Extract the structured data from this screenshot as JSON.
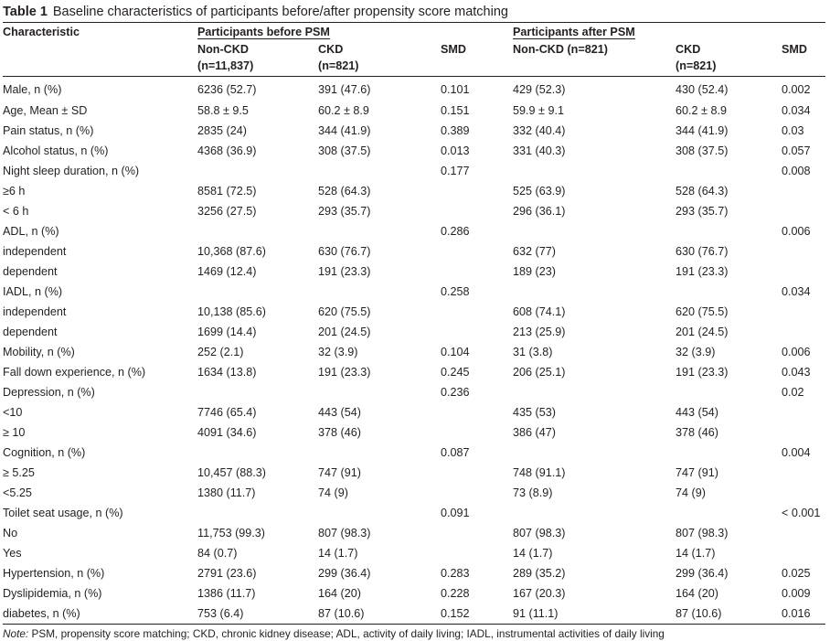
{
  "caption": {
    "label": "Table 1",
    "text": "Baseline characteristics of participants before/after propensity score matching"
  },
  "header": {
    "characteristic": "Characteristic",
    "group_before": "Participants before PSM",
    "group_after": "Participants after PSM",
    "before_noncdk_line1": "Non-CKD",
    "before_noncdk_line2": "(n=11,837)",
    "before_ckd_line1": "CKD",
    "before_ckd_line2": "(n=821)",
    "before_smd": "SMD",
    "after_noncdk_line1": "Non-CKD (n=821)",
    "after_ckd_line1": "CKD",
    "after_ckd_line2": "(n=821)",
    "after_smd": "SMD"
  },
  "rows": [
    [
      "Male, n (%)",
      "6236 (52.7)",
      "391 (47.6)",
      "0.101",
      "429 (52.3)",
      "430 (52.4)",
      "0.002"
    ],
    [
      "Age, Mean ± SD",
      "58.8 ± 9.5",
      "60.2 ± 8.9",
      "0.151",
      "59.9 ± 9.1",
      "60.2 ± 8.9",
      "0.034"
    ],
    [
      "Pain status, n (%)",
      "2835 (24)",
      "344 (41.9)",
      "0.389",
      "332 (40.4)",
      "344 (41.9)",
      "0.03"
    ],
    [
      "Alcohol status, n (%)",
      "4368 (36.9)",
      "308 (37.5)",
      "0.013",
      "331 (40.3)",
      "308 (37.5)",
      "0.057"
    ],
    [
      "Night sleep duration, n (%)",
      "",
      "",
      "0.177",
      "",
      "",
      "0.008"
    ],
    [
      "≥6 h",
      "8581 (72.5)",
      "528 (64.3)",
      "",
      "525 (63.9)",
      "528 (64.3)",
      ""
    ],
    [
      "< 6 h",
      "3256 (27.5)",
      "293 (35.7)",
      "",
      "296 (36.1)",
      "293 (35.7)",
      ""
    ],
    [
      "ADL, n (%)",
      "",
      "",
      "0.286",
      "",
      "",
      "0.006"
    ],
    [
      "independent",
      "10,368 (87.6)",
      "630 (76.7)",
      "",
      "632 (77)",
      "630 (76.7)",
      ""
    ],
    [
      "dependent",
      "1469 (12.4)",
      "191 (23.3)",
      "",
      "189 (23)",
      "191 (23.3)",
      ""
    ],
    [
      "IADL, n (%)",
      "",
      "",
      "0.258",
      "",
      "",
      "0.034"
    ],
    [
      "independent",
      "10,138 (85.6)",
      "620 (75.5)",
      "",
      "608 (74.1)",
      "620 (75.5)",
      ""
    ],
    [
      "dependent",
      "1699 (14.4)",
      "201 (24.5)",
      "",
      "213 (25.9)",
      "201 (24.5)",
      ""
    ],
    [
      "Mobility, n (%)",
      "252 (2.1)",
      "32 (3.9)",
      "0.104",
      "31 (3.8)",
      "32 (3.9)",
      "0.006"
    ],
    [
      "Fall down experience, n (%)",
      "1634 (13.8)",
      "191 (23.3)",
      "0.245",
      "206 (25.1)",
      "191 (23.3)",
      "0.043"
    ],
    [
      "Depression, n (%)",
      "",
      "",
      "0.236",
      "",
      "",
      "0.02"
    ],
    [
      "<10",
      "7746 (65.4)",
      "443 (54)",
      "",
      "435 (53)",
      "443 (54)",
      ""
    ],
    [
      "≥ 10",
      "4091 (34.6)",
      "378 (46)",
      "",
      "386 (47)",
      "378 (46)",
      ""
    ],
    [
      "Cognition, n (%)",
      "",
      "",
      "0.087",
      "",
      "",
      "0.004"
    ],
    [
      "≥ 5.25",
      "10,457 (88.3)",
      "747 (91)",
      "",
      "748 (91.1)",
      "747 (91)",
      ""
    ],
    [
      "<5.25",
      "1380 (11.7)",
      "74 (9)",
      "",
      "73 (8.9)",
      "74 (9)",
      ""
    ],
    [
      "Toilet seat usage, n (%)",
      "",
      "",
      "0.091",
      "",
      "",
      "< 0.001"
    ],
    [
      "No",
      "11,753 (99.3)",
      "807 (98.3)",
      "",
      "807 (98.3)",
      "807 (98.3)",
      ""
    ],
    [
      "Yes",
      "84 (0.7)",
      "14 (1.7)",
      "",
      "14 (1.7)",
      "14 (1.7)",
      ""
    ],
    [
      "Hypertension, n (%)",
      "2791 (23.6)",
      "299 (36.4)",
      "0.283",
      "289 (35.2)",
      "299 (36.4)",
      "0.025"
    ],
    [
      "Dyslipidemia, n (%)",
      "1386 (11.7)",
      "164 (20)",
      "0.228",
      "167 (20.3)",
      "164 (20)",
      "0.009"
    ],
    [
      "diabetes, n (%)",
      "753 (6.4)",
      "87 (10.6)",
      "0.152",
      "91 (11.1)",
      "87 (10.6)",
      "0.016"
    ]
  ],
  "note": {
    "label": "Note:",
    "text": "PSM, propensity score matching; CKD, chronic kidney disease; ADL, activity of daily living; IADL, instrumental activities of daily living"
  }
}
